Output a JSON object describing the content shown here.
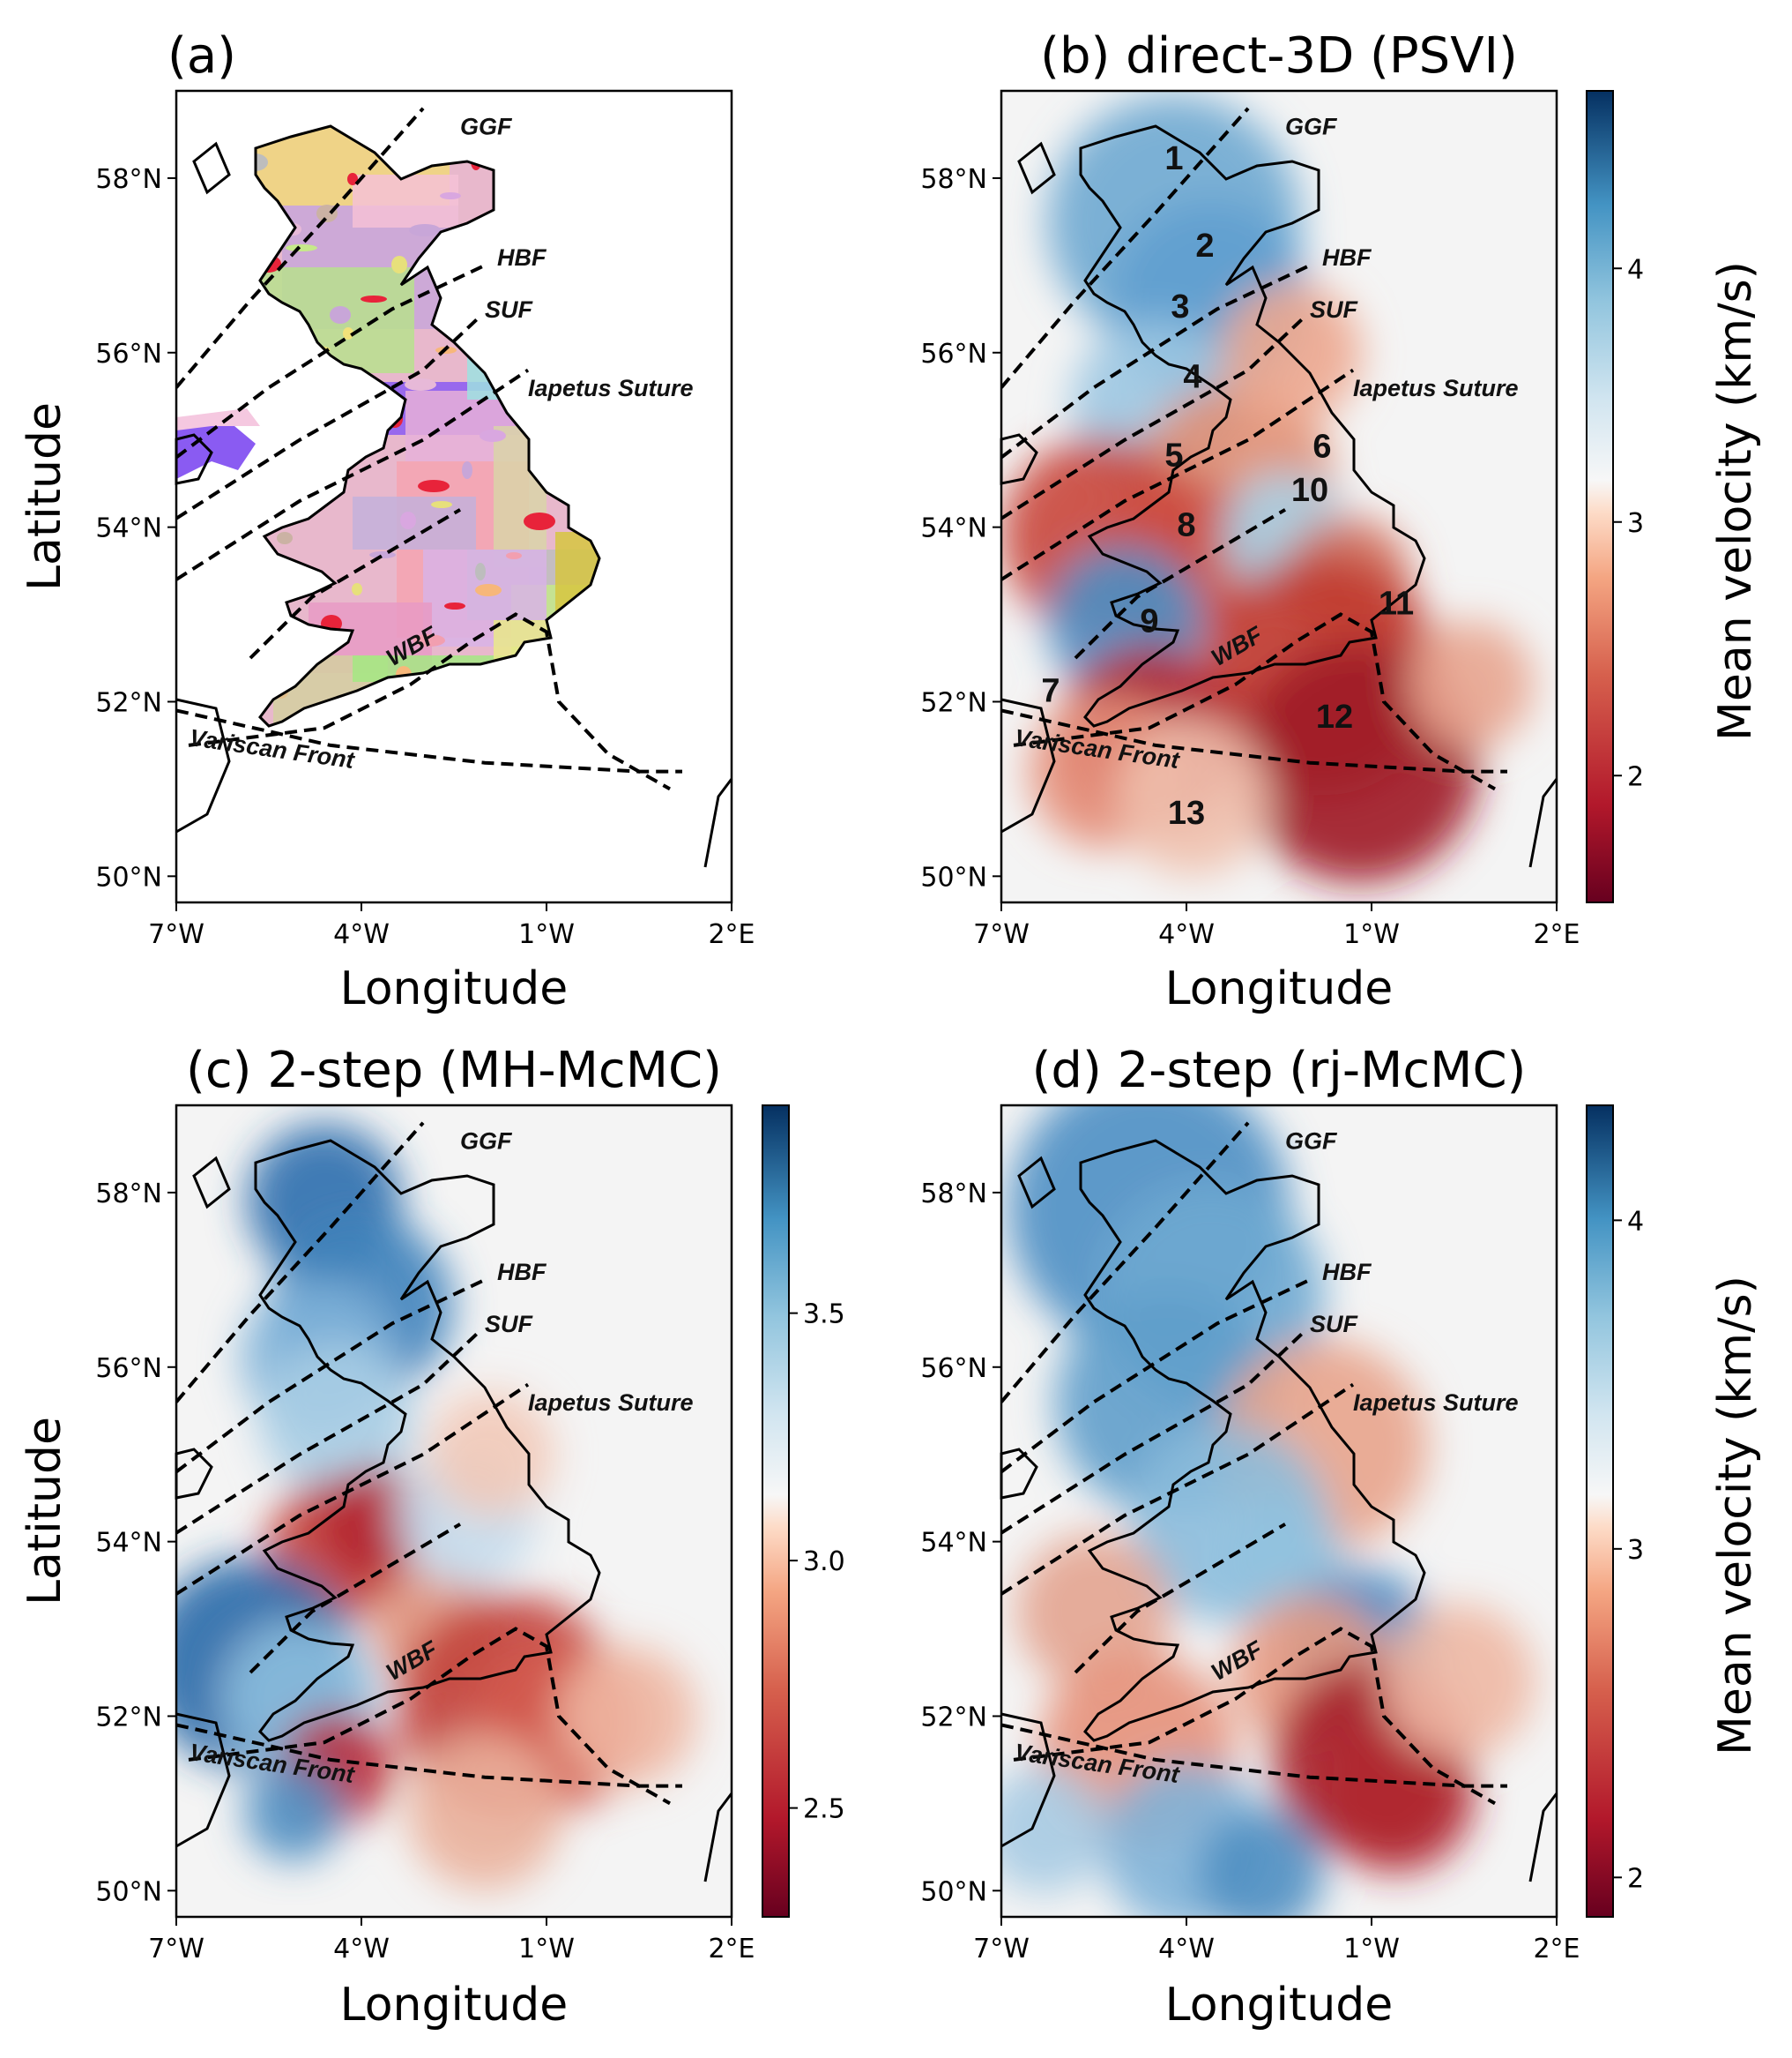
{
  "panels": [
    {
      "id": "a",
      "title": "(a)",
      "type": "geology"
    },
    {
      "id": "b",
      "title": "(b) direct-3D (PSVI)",
      "type": "velocity",
      "colorbar": "cb1"
    },
    {
      "id": "c",
      "title": "(c) 2-step (MH-McMC)",
      "type": "velocity",
      "colorbar": "cb2"
    },
    {
      "id": "d",
      "title": "(d) 2-step (rj-McMC)",
      "type": "velocity",
      "colorbar": "cb3"
    }
  ],
  "axes": {
    "xlabel": "Longitude",
    "ylabel": "Latitude",
    "xticks": [
      "7°W",
      "4°W",
      "1°W",
      "2°E"
    ],
    "yticks": [
      "58°N",
      "56°N",
      "54°N",
      "52°N",
      "50°N"
    ]
  },
  "colorbars": {
    "cb1": {
      "label": "Mean velocity (km/s)",
      "range": [
        1.5,
        4.7
      ],
      "ticks": [
        "4",
        "3",
        "2"
      ]
    },
    "cb2": {
      "label": "",
      "range": [
        2.28,
        3.92
      ],
      "ticks": [
        "3.5",
        "3.0",
        "2.5"
      ]
    },
    "cb3": {
      "label": "Mean velocity (km/s)",
      "range": [
        1.88,
        4.35
      ],
      "ticks": [
        "4",
        "3",
        "2"
      ]
    }
  },
  "faults": {
    "ggf": "GGF",
    "hbf": "HBF",
    "suf": "SUF",
    "iapetus": "Iapetus Suture",
    "wbf": "WBF",
    "variscan": "Variscan Front"
  },
  "regions": [
    "1",
    "2",
    "3",
    "4",
    "5",
    "6",
    "7",
    "8",
    "9",
    "10",
    "11",
    "12",
    "13"
  ],
  "colors": {
    "low_velocity": "#8b0a1f",
    "high_velocity": "#0b3a72",
    "neutral": "#f4f4f4",
    "coast": "#000000"
  },
  "chart_data": [
    {
      "type": "heatmap",
      "title": "(b) direct-3D (PSVI)",
      "xlabel": "Longitude",
      "ylabel": "Latitude",
      "xlim": [
        -7,
        2
      ],
      "ylim": [
        49.7,
        59
      ],
      "colorbar_label": "Mean velocity (km/s)",
      "clim": [
        1.5,
        4.7
      ]
    },
    {
      "type": "heatmap",
      "title": "(c) 2-step (MH-McMC)",
      "xlabel": "Longitude",
      "ylabel": "Latitude",
      "xlim": [
        -7,
        2
      ],
      "ylim": [
        49.7,
        59
      ],
      "clim": [
        2.28,
        3.92
      ]
    },
    {
      "type": "heatmap",
      "title": "(d) 2-step (rj-McMC)",
      "xlabel": "Longitude",
      "ylabel": "Latitude",
      "xlim": [
        -7,
        2
      ],
      "ylim": [
        49.7,
        59
      ],
      "colorbar_label": "Mean velocity (km/s)",
      "clim": [
        1.88,
        4.35
      ]
    }
  ]
}
